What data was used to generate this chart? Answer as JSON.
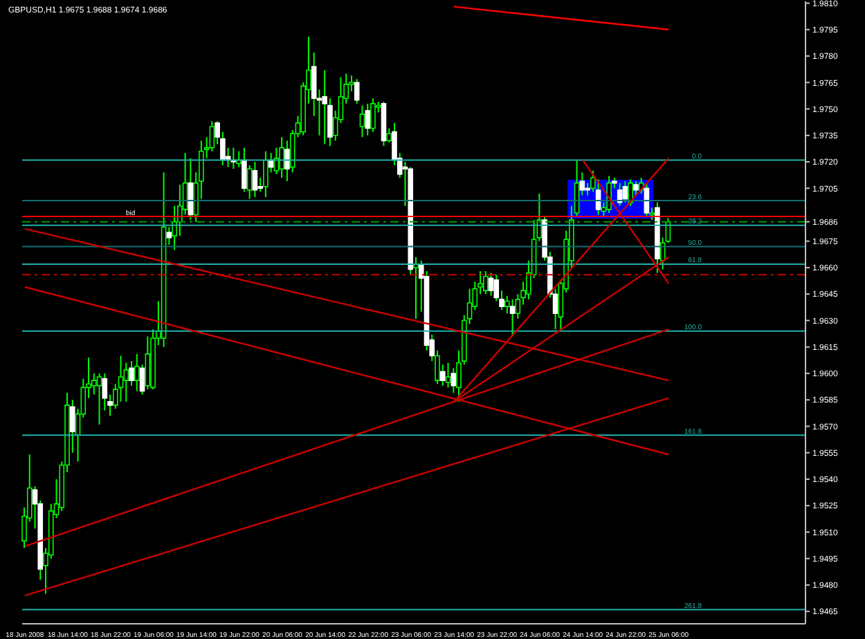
{
  "chart_data": {
    "type": "candlestick",
    "title": "GBPUSD,H1 1.9675 1.9688 1.9674 1.9686",
    "color": "#00ff00",
    "categories": [
      "18 Jun 2008",
      null,
      null,
      null,
      null,
      null,
      null,
      null,
      "18 Jun 14:00",
      null,
      null,
      null,
      null,
      null,
      null,
      null,
      "18 Jun 22:00",
      null,
      null,
      null,
      null,
      null,
      null,
      null,
      "19 Jun 06:00",
      null,
      null,
      null,
      null,
      null,
      null,
      null,
      "19 Jun 14:00",
      null,
      null,
      null,
      null,
      null,
      null,
      null,
      "19 Jun 22:00",
      null,
      null,
      null,
      null,
      null,
      null,
      null,
      "20 Jun 06:00",
      null,
      null,
      null,
      null,
      null,
      null,
      null,
      "20 Jun 14:00",
      null,
      null,
      null,
      null,
      null,
      null,
      null,
      "22 Jun 22:00",
      null,
      null,
      null,
      null,
      null,
      null,
      null,
      "23 Jun 06:00",
      null,
      null,
      null,
      null,
      null,
      null,
      null,
      "23 Jun 14:00",
      null,
      null,
      null,
      null,
      null,
      null,
      null,
      "23 Jun 22:00",
      null,
      null,
      null,
      null,
      null,
      null,
      null,
      "24 Jun 06:00",
      null,
      null,
      null,
      null,
      null,
      null,
      null,
      "24 Jun 14:00",
      null,
      null,
      null,
      null,
      null,
      null,
      null,
      "24 Jun 22:00",
      null,
      null,
      null,
      null,
      null,
      null,
      null,
      "25 Jun 06:00",
      null,
      null,
      null,
      null,
      null,
      null,
      null,
      null,
      null,
      null,
      null,
      null,
      null,
      null,
      null,
      null,
      null,
      null,
      null,
      null,
      null,
      null,
      null,
      null,
      null
    ],
    "ohlc": [
      [
        1.9505,
        1.9524,
        1.9501,
        1.9519
      ],
      [
        1.9518,
        1.9554,
        1.9516,
        1.9535
      ],
      [
        1.9534,
        1.9536,
        1.9512,
        1.9526
      ],
      [
        1.9526,
        1.9528,
        1.9483,
        1.9489
      ],
      [
        1.9491,
        1.9501,
        1.9475,
        1.9498
      ],
      [
        1.9497,
        1.9526,
        1.9495,
        1.9522
      ],
      [
        1.952,
        1.954,
        1.9518,
        1.9526
      ],
      [
        1.9524,
        1.955,
        1.9522,
        1.9548
      ],
      [
        1.9548,
        1.9589,
        1.9544,
        1.9582
      ],
      [
        1.9581,
        1.9585,
        1.9555,
        1.9567
      ],
      [
        1.9565,
        1.958,
        1.955,
        1.9577
      ],
      [
        1.9577,
        1.9597,
        1.9575,
        1.9592
      ],
      [
        1.9592,
        1.9609,
        1.9586,
        1.9594
      ],
      [
        1.9593,
        1.96,
        1.9588,
        1.9596
      ],
      [
        1.9593,
        1.96,
        1.9571,
        1.9598
      ],
      [
        1.9597,
        1.96,
        1.9579,
        1.9586
      ],
      [
        1.9584,
        1.9588,
        1.9576,
        1.9582
      ],
      [
        1.9582,
        1.9594,
        1.958,
        1.9591
      ],
      [
        1.9592,
        1.961,
        1.9584,
        1.9598
      ],
      [
        1.9596,
        1.9606,
        1.9584,
        1.9602
      ],
      [
        1.9603,
        1.9607,
        1.9593,
        1.9596
      ],
      [
        1.9596,
        1.9611,
        1.959,
        1.9604
      ],
      [
        1.9603,
        1.9605,
        1.9588,
        1.959
      ],
      [
        1.9593,
        1.9621,
        1.9591,
        1.9611
      ],
      [
        1.9592,
        1.9625,
        1.9591,
        1.962
      ],
      [
        1.962,
        1.9641,
        1.9616,
        1.9624
      ],
      [
        1.962,
        1.9714,
        1.9615,
        1.9683
      ],
      [
        1.968,
        1.9683,
        1.9673,
        1.9677
      ],
      [
        1.9678,
        1.9695,
        1.967,
        1.9686
      ],
      [
        1.9686,
        1.9707,
        1.9678,
        1.9695
      ],
      [
        1.9693,
        1.9725,
        1.969,
        1.9708
      ],
      [
        1.9708,
        1.9722,
        1.9687,
        1.969
      ],
      [
        1.969,
        1.9714,
        1.9686,
        1.9708
      ],
      [
        1.9709,
        1.9732,
        1.9699,
        1.9726
      ],
      [
        1.9727,
        1.9734,
        1.9722,
        1.9728
      ],
      [
        1.9728,
        1.9743,
        1.9726,
        1.974
      ],
      [
        1.9742,
        1.9743,
        1.973,
        1.9734
      ],
      [
        1.9733,
        1.9737,
        1.9718,
        1.9721
      ],
      [
        1.9723,
        1.9728,
        1.9717,
        1.9721
      ],
      [
        1.9721,
        1.9728,
        1.9716,
        1.972
      ],
      [
        1.9719,
        1.9726,
        1.9717,
        1.9721
      ],
      [
        1.9721,
        1.9728,
        1.9703,
        1.9705
      ],
      [
        1.9704,
        1.9718,
        1.9699,
        1.9716
      ],
      [
        1.9715,
        1.972,
        1.97,
        1.9704
      ],
      [
        1.9706,
        1.9711,
        1.9703,
        1.9705
      ],
      [
        1.9706,
        1.9726,
        1.97,
        1.9721
      ],
      [
        1.9721,
        1.9725,
        1.9714,
        1.9717
      ],
      [
        1.9715,
        1.9728,
        1.9713,
        1.9722
      ],
      [
        1.9716,
        1.9734,
        1.9711,
        1.9728
      ],
      [
        1.9727,
        1.9732,
        1.9709,
        1.9716
      ],
      [
        1.9717,
        1.9738,
        1.9714,
        1.9736
      ],
      [
        1.9736,
        1.9746,
        1.9734,
        1.9742
      ],
      [
        1.9737,
        1.9765,
        1.9735,
        1.9763
      ],
      [
        1.9761,
        1.9791,
        1.9753,
        1.9772
      ],
      [
        1.9774,
        1.9782,
        1.9746,
        1.9756
      ],
      [
        1.9756,
        1.9761,
        1.9735,
        1.9755
      ],
      [
        1.9757,
        1.9772,
        1.973,
        1.9753
      ],
      [
        1.9752,
        1.9756,
        1.9729,
        1.9734
      ],
      [
        1.9735,
        1.9749,
        1.9732,
        1.9745
      ],
      [
        1.9744,
        1.9768,
        1.9742,
        1.9757
      ],
      [
        1.9756,
        1.977,
        1.9753,
        1.9764
      ],
      [
        1.9764,
        1.9769,
        1.976,
        1.9765
      ],
      [
        1.9765,
        1.9767,
        1.9753,
        1.9755
      ],
      [
        1.974,
        1.9752,
        1.9734,
        1.9747
      ],
      [
        1.9749,
        1.9753,
        1.9735,
        1.9739
      ],
      [
        1.9739,
        1.9756,
        1.9737,
        1.9753
      ],
      [
        1.9751,
        1.9754,
        1.9748,
        1.9752
      ],
      [
        1.9753,
        1.9754,
        1.9729,
        1.9732
      ],
      [
        1.9732,
        1.9739,
        1.9731,
        1.9736
      ],
      [
        1.9737,
        1.9742,
        1.9718,
        1.9721
      ],
      [
        1.9722,
        1.9725,
        1.9711,
        1.9713
      ],
      [
        1.9717,
        1.972,
        1.9695,
        1.9716
      ],
      [
        1.9716,
        1.9717,
        1.9656,
        1.9659
      ],
      [
        1.966,
        1.9666,
        1.9631,
        1.9662
      ],
      [
        1.9662,
        1.9664,
        1.9635,
        1.9654
      ],
      [
        1.9655,
        1.9658,
        1.9613,
        1.9616
      ],
      [
        1.9619,
        1.9622,
        1.9607,
        1.961
      ],
      [
        1.9596,
        1.9613,
        1.9594,
        1.961
      ],
      [
        1.9601,
        1.9605,
        1.9593,
        1.9596
      ],
      [
        1.9595,
        1.9606,
        1.9592,
        1.9598
      ],
      [
        1.96,
        1.9603,
        1.9589,
        1.9593
      ],
      [
        1.9592,
        1.9613,
        1.9584,
        1.9606
      ],
      [
        1.9607,
        1.9633,
        1.9605,
        1.963
      ],
      [
        1.9631,
        1.9648,
        1.9628,
        1.964
      ],
      [
        1.9638,
        1.9652,
        1.9636,
        1.9648
      ],
      [
        1.9649,
        1.9658,
        1.9645,
        1.9651
      ],
      [
        1.9647,
        1.9658,
        1.9645,
        1.9655
      ],
      [
        1.9654,
        1.9657,
        1.9644,
        1.9647
      ],
      [
        1.9653,
        1.9656,
        1.9641,
        1.9643
      ],
      [
        1.9642,
        1.9647,
        1.9636,
        1.9638
      ],
      [
        1.9638,
        1.9644,
        1.9634,
        1.9641
      ],
      [
        1.9638,
        1.9642,
        1.9621,
        1.9634
      ],
      [
        1.9634,
        1.9645,
        1.9631,
        1.9642
      ],
      [
        1.9643,
        1.9652,
        1.9639,
        1.9647
      ],
      [
        1.9645,
        1.9664,
        1.9642,
        1.9657
      ],
      [
        1.9656,
        1.9687,
        1.9654,
        1.9676
      ],
      [
        1.9677,
        1.9702,
        1.9675,
        1.9687
      ],
      [
        1.9687,
        1.9689,
        1.9664,
        1.9666
      ],
      [
        1.9666,
        1.9669,
        1.9643,
        1.9645
      ],
      [
        1.9645,
        1.9648,
        1.9625,
        1.9634
      ],
      [
        1.9632,
        1.9653,
        1.9624,
        1.9651
      ],
      [
        1.9648,
        1.9681,
        1.9646,
        1.9676
      ],
      [
        1.9664,
        1.9695,
        1.966,
        1.9687
      ],
      [
        1.9691,
        1.9721,
        1.9689,
        1.9708
      ],
      [
        1.9709,
        1.9714,
        1.9701,
        1.9704
      ],
      [
        1.9705,
        1.9708,
        1.9701,
        1.9704
      ],
      [
        1.9705,
        1.9715,
        1.9703,
        1.9711
      ],
      [
        1.9704,
        1.971,
        1.969,
        1.9693
      ],
      [
        1.9692,
        1.9697,
        1.9689,
        1.9694
      ],
      [
        1.9693,
        1.9712,
        1.9691,
        1.9708
      ],
      [
        1.9709,
        1.9711,
        1.9705,
        1.9708
      ],
      [
        1.9704,
        1.9708,
        1.9695,
        1.9697
      ],
      [
        1.9706,
        1.9709,
        1.9697,
        1.9699
      ],
      [
        1.9697,
        1.971,
        1.9695,
        1.9708
      ],
      [
        1.9707,
        1.9709,
        1.9701,
        1.9704
      ],
      [
        1.9704,
        1.9711,
        1.9702,
        1.9708
      ],
      [
        1.9705,
        1.9708,
        1.9689,
        1.9691
      ],
      [
        1.969,
        1.9694,
        1.9687,
        1.9691
      ],
      [
        1.9694,
        1.9697,
        1.9657,
        1.9665
      ],
      [
        1.9664,
        1.9677,
        1.9659,
        1.9674
      ],
      [
        1.9675,
        1.9688,
        1.9674,
        1.9686
      ],
      null,
      null,
      null,
      null,
      null,
      null,
      null,
      null,
      null,
      null,
      null,
      null,
      null,
      null,
      null,
      null,
      null,
      null,
      null,
      null,
      null,
      null,
      null,
      null,
      null
    ],
    "colors": [
      "#00ff00",
      "#00ff00",
      "#ffffff",
      "#ffffff",
      "#00ff00",
      "#00ff00",
      "#00ff00",
      "#00ff00",
      "#00ff00",
      "#ffffff",
      "#00ff00",
      "#00ff00",
      "#00ff00",
      "#00ff00",
      "#00ff00",
      "#ffffff",
      "#ffffff",
      "#00ff00",
      "#00ff00",
      "#00ff00",
      "#ffffff",
      "#00ff00",
      "#ffffff",
      "#00ff00",
      "#00ff00",
      "#00ff00",
      "#00ff00",
      "#ffffff",
      "#00ff00",
      "#00ff00",
      "#00ff00",
      "#ffffff",
      "#00ff00",
      "#00ff00",
      "#00ff00",
      "#00ff00",
      "#ffffff",
      "#ffffff",
      "#ffffff",
      "#ffffff",
      "#00ff00",
      "#ffffff",
      "#00ff00",
      "#ffffff",
      "#ffffff",
      "#00ff00",
      "#ffffff",
      "#00ff00",
      "#00ff00",
      "#ffffff",
      "#00ff00",
      "#00ff00",
      "#00ff00",
      "#00ff00",
      "#ffffff",
      "#ffffff",
      "#ffffff",
      "#ffffff",
      "#00ff00",
      "#00ff00",
      "#00ff00",
      "#00ff00",
      "#ffffff",
      "#00ff00",
      "#ffffff",
      "#00ff00",
      "#00ff00",
      "#ffffff",
      "#00ff00",
      "#ffffff",
      "#ffffff",
      "#ffffff",
      "#ffffff",
      "#00ff00",
      "#ffffff",
      "#ffffff",
      "#ffffff",
      "#00ff00",
      "#ffffff",
      "#00ff00",
      "#ffffff",
      "#00ff00",
      "#00ff00",
      "#00ff00",
      "#00ff00",
      "#00ff00",
      "#00ff00",
      "#ffffff",
      "#ffffff",
      "#ffffff",
      "#00ff00",
      "#ffffff",
      "#00ff00",
      "#00ff00",
      "#00ff00",
      "#00ff00",
      "#00ff00",
      "#ffffff",
      "#ffffff",
      "#ffffff",
      "#00ff00",
      "#00ff00",
      "#00ff00",
      "#00ff00",
      "#ffffff",
      "#ffffff",
      "#00ff00",
      "#ffffff",
      "#00ff00",
      "#00ff00",
      "#ffffff",
      "#ffffff",
      "#ffffff",
      "#00ff00",
      "#ffffff",
      "#00ff00",
      "#ffffff",
      "#00ff00",
      "#ffffff",
      "#00ff00",
      "#00ff00",
      null,
      null,
      null,
      null,
      null,
      null,
      null,
      null,
      null,
      null,
      null,
      null,
      null,
      null,
      null,
      null,
      null,
      null,
      null,
      null,
      null,
      null,
      null,
      null,
      null
    ],
    "series": [
      {
        "type": "line",
        "color": "#ff0000",
        "x": [
          "23 Jun 14:00",
          "25 Jun 06:00"
        ],
        "values": [
          1.9808,
          1.9795
        ]
      },
      {
        "type": "line",
        "color": "#cc0000",
        "x": [
          "18 Jun 2008",
          "25 Jun 06:00"
        ],
        "values": [
          1.9682,
          1.9596
        ]
      },
      {
        "type": "line",
        "color": "#cc0000",
        "x": [
          "18 Jun 2008",
          "25 Jun 06:00"
        ],
        "values": [
          1.9649,
          1.9554
        ]
      },
      {
        "type": "line",
        "color": "#cc0000",
        "x": [
          "18 Jun 2008",
          "25 Jun 06:00"
        ],
        "values": [
          1.9502,
          1.9625
        ]
      },
      {
        "type": "line",
        "color": "#cc0000",
        "x": [
          "18 Jun 2008",
          "25 Jun 06:00"
        ],
        "values": [
          1.9474,
          1.9586
        ]
      },
      {
        "type": "line",
        "color": "#cc0000",
        "x": [
          "23 Jun 14:00",
          "25 Jun 06:00"
        ],
        "values": [
          1.9584,
          1.9722
        ]
      },
      {
        "type": "line",
        "color": "#cc0000",
        "x": [
          "23 Jun 14:00",
          "25 Jun 06:00"
        ],
        "values": [
          1.9584,
          1.9666
        ]
      },
      {
        "type": "line",
        "color": "#cc0000",
        "x": [
          "24 Jun 14:00",
          "25 Jun 06:00"
        ],
        "values": [
          1.9721,
          1.9651
        ]
      }
    ],
    "ref_lines": [
      {
        "axis": "y",
        "value": 1.9689,
        "label": "bid",
        "color": "#ff0000",
        "line_style": "solid"
      },
      {
        "axis": "y",
        "value": 1.9686,
        "color": "#00a000",
        "line_style": "dashed"
      },
      {
        "axis": "y",
        "value": 1.9656,
        "color": "#cc0000",
        "line_style": "dashed"
      },
      {
        "axis": "y",
        "value": 1.9721,
        "color": "#20b2aa"
      },
      {
        "axis": "y",
        "value": 1.9698,
        "color": "#0e7070"
      },
      {
        "axis": "y",
        "value": 1.9684,
        "color": "#20b2aa"
      },
      {
        "axis": "y",
        "value": 1.9672,
        "color": "#0e7070"
      },
      {
        "axis": "y",
        "value": 1.9662,
        "color": "#20b2aa"
      },
      {
        "axis": "y",
        "value": 1.9624,
        "color": "#20b2aa"
      },
      {
        "axis": "y",
        "value": 1.9565,
        "color": "#20b2aa"
      },
      {
        "axis": "y",
        "value": 1.9466,
        "color": "#20b2aa"
      }
    ],
    "annotations": [
      {
        "text": "0.0",
        "y": 1.9721
      },
      {
        "text": "23.6",
        "y": 1.9698
      },
      {
        "text": "38.2",
        "y": 1.9684
      },
      {
        "text": "50.0",
        "y": 1.9672
      },
      {
        "text": "61.8",
        "y": 1.9662
      },
      {
        "text": "100.0",
        "y": 1.9624
      },
      {
        "text": "161.8",
        "y": 1.9565
      },
      {
        "text": "261.8",
        "y": 1.9466
      }
    ],
    "ylim": [
      1.9458,
      1.9811
    ],
    "yticks": [
      1.9465,
      {
        "value": 1.948,
        "label": "1.9480"
      },
      1.9495,
      {
        "value": 1.951,
        "label": "1.9510"
      },
      1.9525,
      {
        "value": 1.954,
        "label": "1.9540"
      },
      1.9555,
      {
        "value": 1.957,
        "label": "1.9570"
      },
      1.9585,
      {
        "value": 1.96,
        "label": "1.9600"
      },
      1.9615,
      {
        "value": 1.963,
        "label": "1.9630"
      },
      1.9645,
      {
        "value": 1.966,
        "label": "1.9660"
      },
      1.9675,
      1.9686,
      1.9705,
      {
        "value": 1.972,
        "label": "1.9720"
      },
      1.9735,
      {
        "value": 1.975,
        "label": "1.9750"
      },
      1.9765,
      {
        "value": 1.978,
        "label": "1.9780"
      },
      1.9795,
      {
        "value": 1.981,
        "label": "1.9810"
      }
    ]
  }
}
